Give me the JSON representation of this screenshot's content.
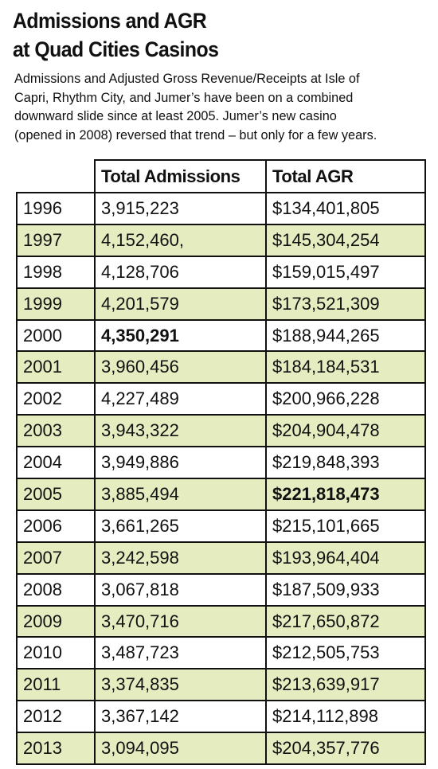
{
  "header": {
    "title": [
      "Admissions and AGR",
      "at Quad Cities Casinos"
    ],
    "description": [
      "Admissions and Adjusted Gross Revenue/Receipts at Isle of",
      "Capri, Rhythm City, and Jumer’s have been on a combined",
      "downward slide since at least 2005. Jumer’s new casino",
      "(opened in 2008) reversed that trend – but only for a few years."
    ]
  },
  "table": {
    "columns": [
      "Total Admissions",
      "Total AGR"
    ],
    "rows": [
      [
        "1996",
        "3,915,223",
        "$134,401,805"
      ],
      [
        "1997",
        "4,152,460,",
        "$145,304,254"
      ],
      [
        "1998",
        "4,128,706",
        "$159,015,497"
      ],
      [
        "1999",
        "4,201,579",
        "$173,521,309"
      ],
      [
        "2000",
        "4,350,291",
        "$188,944,265"
      ],
      [
        "2001",
        "3,960,456",
        "$184,184,531"
      ],
      [
        "2002",
        "4,227,489",
        "$200,966,228"
      ],
      [
        "2003",
        "3,943,322",
        "$204,904,478"
      ],
      [
        "2004",
        "3,949,886",
        "$219,848,393"
      ],
      [
        "2005",
        "3,885,494",
        "$221,818,473"
      ],
      [
        "2006",
        "3,661,265",
        "$215,101,665"
      ],
      [
        "2007",
        "3,242,598",
        "$193,964,404"
      ],
      [
        "2008",
        "3,067,818",
        "$187,509,933"
      ],
      [
        "2009",
        "3,470,716",
        "$217,650,872"
      ],
      [
        "2010",
        "3,487,723",
        "$212,505,753"
      ],
      [
        "2011",
        "3,374,835",
        "$213,639,917"
      ],
      [
        "2012",
        "3,367,142",
        "$214,112,898"
      ],
      [
        "2013",
        "3,094,095",
        "$204,357,776"
      ]
    ]
  }
}
